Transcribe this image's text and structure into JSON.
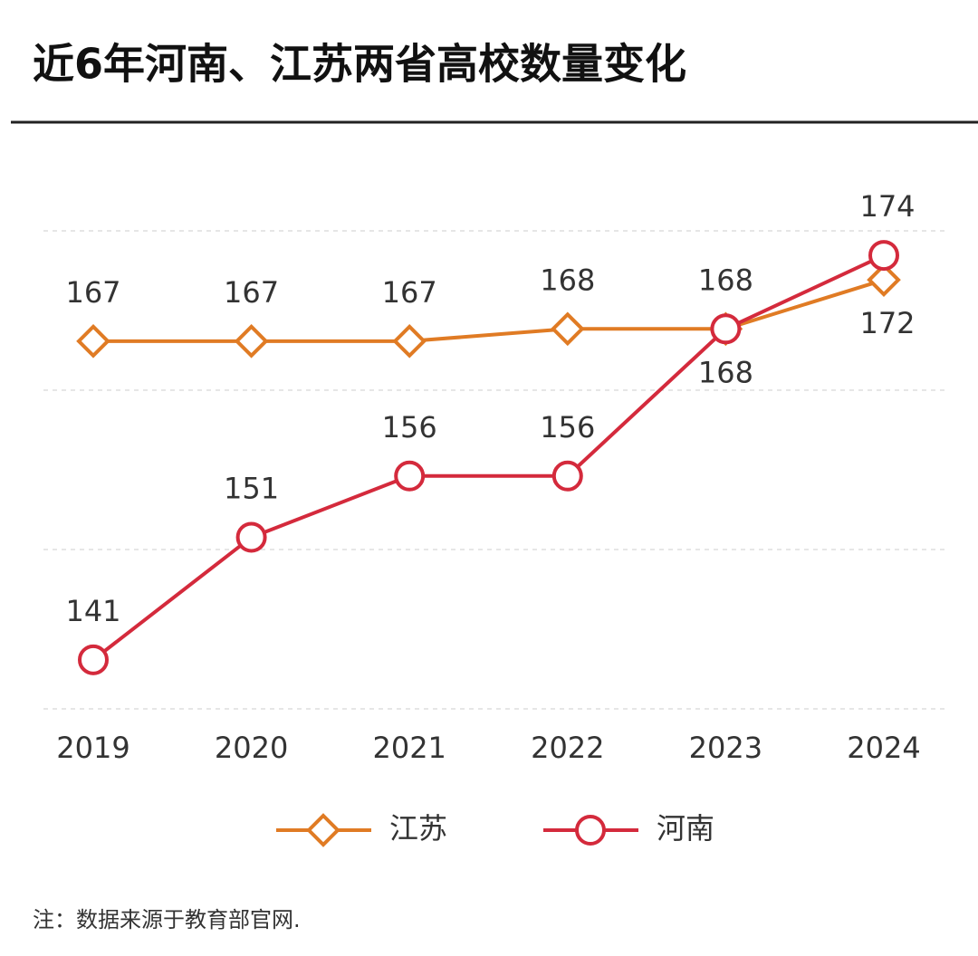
{
  "chart_data": {
    "type": "line",
    "title": "近6年河南、江苏两省高校数量变化",
    "categories": [
      "2019",
      "2020",
      "2021",
      "2022",
      "2023",
      "2024"
    ],
    "series": [
      {
        "name": "江苏",
        "color": "#e07b24",
        "marker": "diamond",
        "values": [
          167,
          167,
          167,
          168,
          168,
          172
        ]
      },
      {
        "name": "河南",
        "color": "#d42a3c",
        "marker": "circle",
        "values": [
          141,
          151,
          156,
          156,
          168,
          174
        ]
      }
    ],
    "ylim": [
      137,
      176
    ],
    "yticks": [
      137,
      150,
      163,
      176
    ],
    "grid": true,
    "note": "注：数据来源于教育部官网."
  }
}
